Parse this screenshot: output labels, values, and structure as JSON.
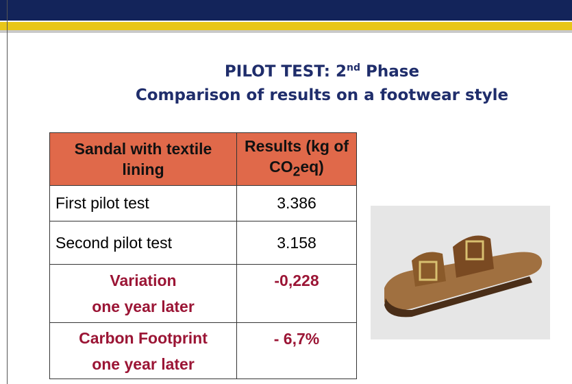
{
  "header": {
    "title_line1_before": "PILOT TEST: 2",
    "title_line1_sup": "nd",
    "title_line1_after": "Phase",
    "title_line2": "Comparison of results on a footwear style"
  },
  "table": {
    "head": {
      "col1": "Sandal with textile lining",
      "col2_before": "Results (kg of CO",
      "col2_sub": "2",
      "col2_after": "eq)"
    },
    "rows": [
      {
        "label": [
          "First pilot test"
        ],
        "value": "3.386"
      },
      {
        "label": [
          "Second pilot test"
        ],
        "value": "3.158"
      },
      {
        "label": [
          "Variation",
          "one year later"
        ],
        "value": "-0,228"
      },
      {
        "label": [
          "Carbon Footprint",
          "one year later"
        ],
        "value": "- 6,7%"
      }
    ]
  }
}
